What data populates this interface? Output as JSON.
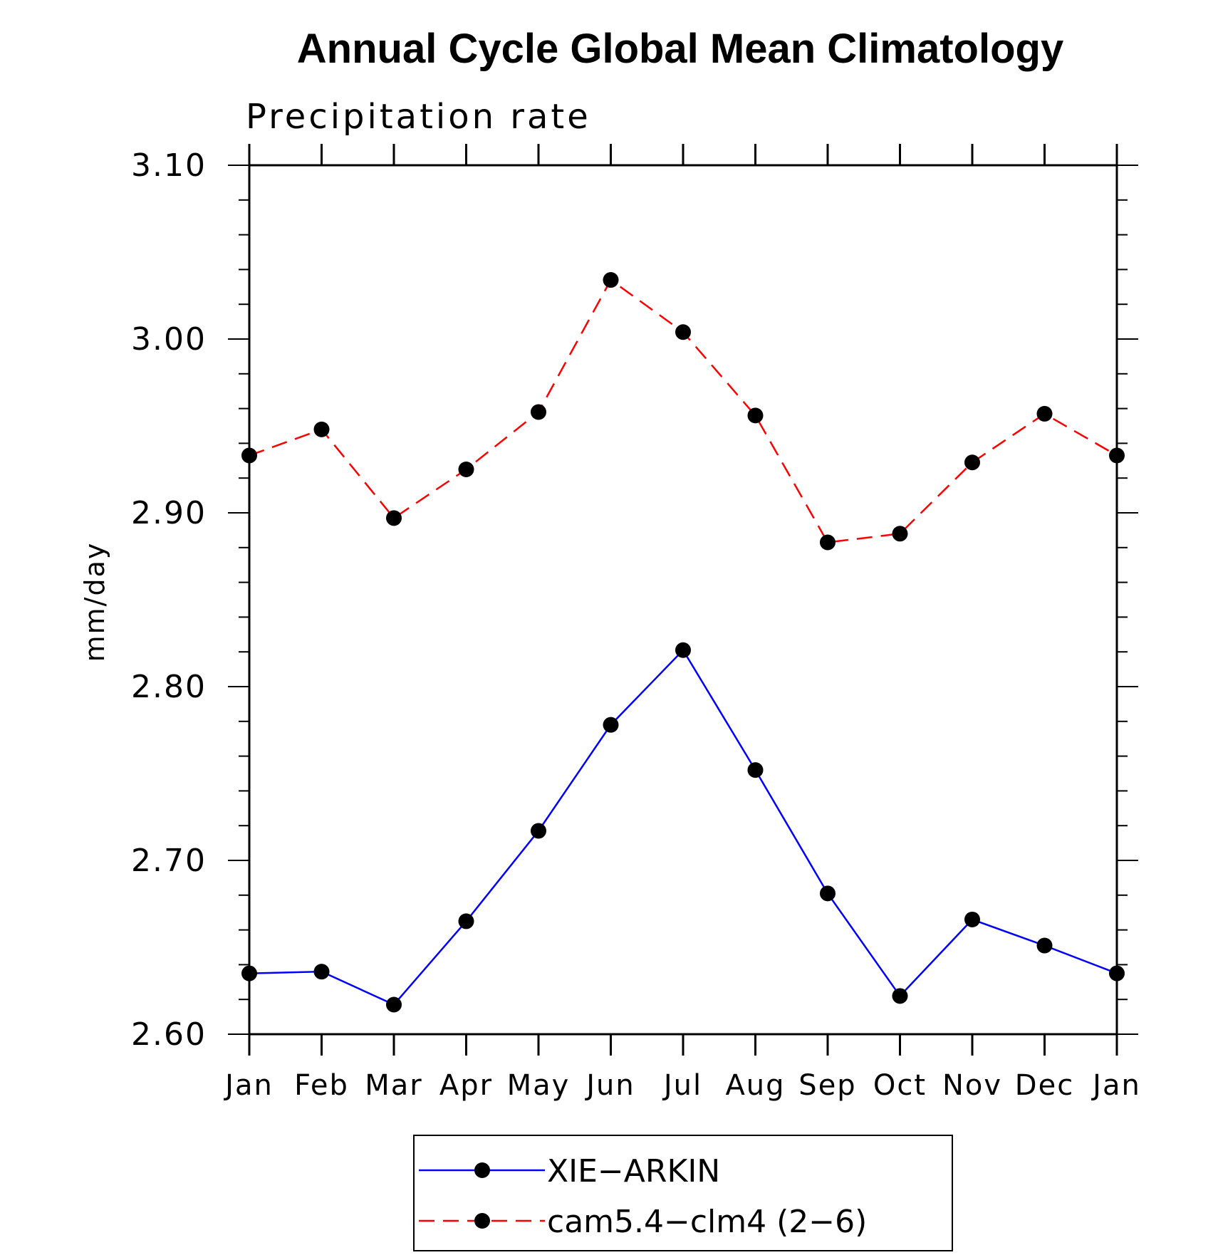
{
  "chart_data": {
    "type": "line",
    "title": "Annual Cycle Global Mean Climatology",
    "subtitle": "Precipitation rate",
    "ylabel": "mm/day",
    "xlabel": "",
    "categories": [
      "Jan",
      "Feb",
      "Mar",
      "Apr",
      "May",
      "Jun",
      "Jul",
      "Aug",
      "Sep",
      "Oct",
      "Nov",
      "Dec",
      "Jan"
    ],
    "ylim": [
      2.6,
      3.1
    ],
    "yticks": [
      "2.60",
      "2.70",
      "2.80",
      "2.90",
      "3.00",
      "3.10"
    ],
    "legend_position": "bottom-center",
    "grid": false,
    "series": [
      {
        "name": "XIE−ARKIN",
        "color": "#0000ff",
        "dash": "solid",
        "marker": "filled-circle",
        "values": [
          2.635,
          2.636,
          2.617,
          2.665,
          2.717,
          2.778,
          2.821,
          2.752,
          2.681,
          2.622,
          2.666,
          2.651,
          2.635
        ]
      },
      {
        "name": "cam5.4−clm4 (2−6)",
        "color": "#ff0000",
        "dash": "dashed",
        "marker": "filled-circle",
        "values": [
          2.933,
          2.948,
          2.897,
          2.925,
          2.958,
          3.034,
          3.004,
          2.956,
          2.883,
          2.888,
          2.929,
          2.957,
          2.933
        ]
      }
    ]
  }
}
